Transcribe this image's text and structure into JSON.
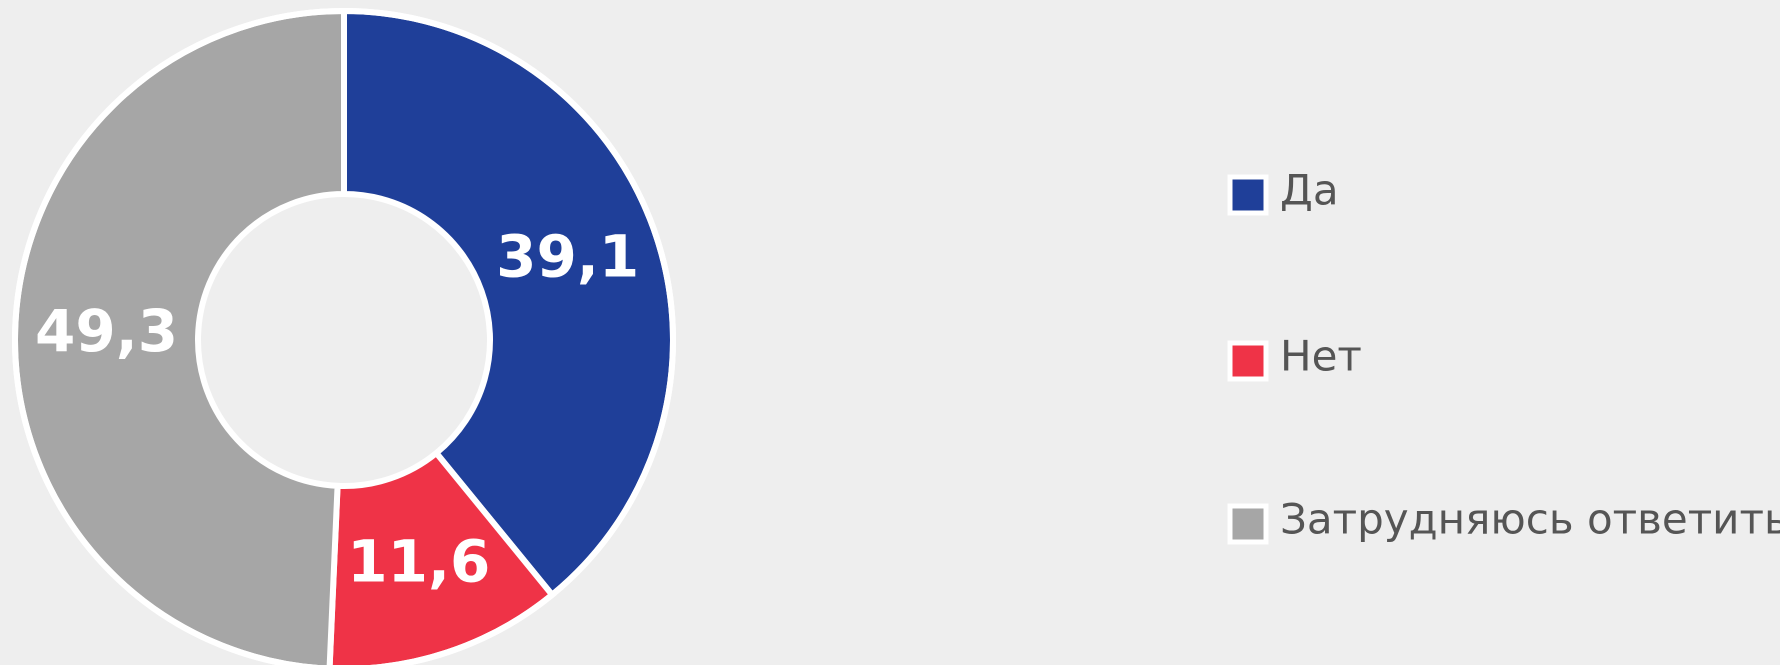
{
  "chart_data": {
    "type": "donut",
    "categories": [
      "Да",
      "Нет",
      "Затрудняюсь ответить"
    ],
    "values": [
      39.1,
      11.6,
      49.3
    ],
    "value_labels": [
      "39,1",
      "11,6",
      "49,3"
    ],
    "colors": [
      "#1f3f99",
      "#ef3347",
      "#a6a6a6"
    ],
    "legend": "right"
  }
}
